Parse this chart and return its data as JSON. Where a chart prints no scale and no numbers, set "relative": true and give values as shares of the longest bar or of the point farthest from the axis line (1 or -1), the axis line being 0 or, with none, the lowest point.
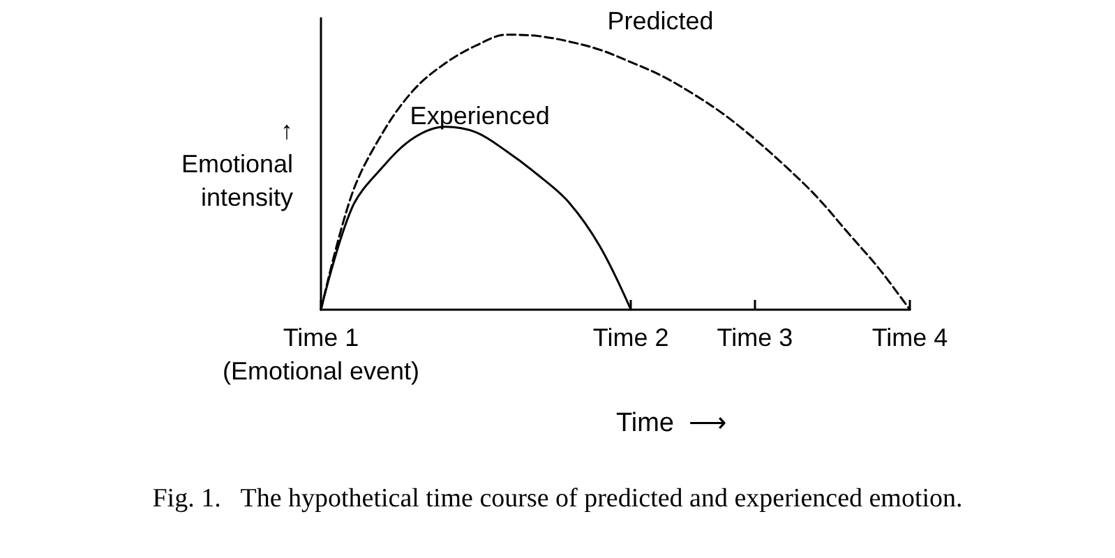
{
  "chart_data": {
    "type": "line",
    "relative": true,
    "title": "Fig. 1.   The hypothetical time course of predicted and experienced emotion.",
    "xlabel": "Time  ⟶",
    "ylabel": "↑\nEmotional\nintensity",
    "categories": [
      "Time 1\n(Emotional event)",
      null,
      null,
      null,
      null,
      null,
      null,
      null,
      null,
      null,
      "Time 2",
      null,
      null,
      null,
      "Time 3",
      null,
      null,
      null,
      null,
      "Time 4"
    ],
    "grid": false,
    "legend": false,
    "marker": "none",
    "series": [
      {
        "name": "Predicted",
        "color": "#000000",
        "line_style": "dashed",
        "values": [
          0,
          0.42,
          0.645,
          0.8,
          0.895,
          0.96,
          1,
          0.995,
          0.975,
          0.945,
          0.9,
          0.85,
          0.785,
          0.71,
          0.62,
          0.52,
          0.41,
          0.28,
          0.15,
          0
        ]
      },
      {
        "name": "Experienced",
        "color": "#000000",
        "line_style": "solid",
        "values": [
          0,
          0.37,
          0.52,
          0.625,
          0.665,
          0.645,
          0.575,
          0.49,
          0.39,
          0.23,
          0,
          null,
          null,
          null,
          null,
          null,
          null,
          null,
          null,
          null
        ]
      }
    ]
  }
}
